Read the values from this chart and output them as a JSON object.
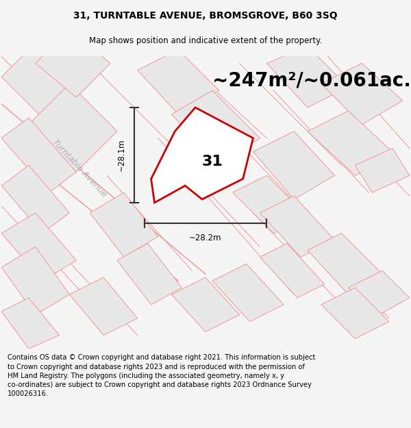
{
  "title": "31, TURNTABLE AVENUE, BROMSGROVE, B60 3SQ",
  "subtitle": "Map shows position and indicative extent of the property.",
  "area_text": "~247m²/~0.061ac.",
  "property_label": "31",
  "dim_horizontal": "~28.2m",
  "dim_vertical": "~28.1m",
  "street_label": "Turntable Avenue",
  "footer_line1": "Contains OS data © Crown copyright and database right 2021. This information is subject",
  "footer_line2": "to Crown copyright and database rights 2023 and is reproduced with the permission of",
  "footer_line3": "HM Land Registry. The polygons (including the associated geometry, namely x, y",
  "footer_line4": "co-ordinates) are subject to Crown copyright and database rights 2023 Ordnance Survey",
  "footer_line5": "100026316.",
  "bg_color": "#f5f5f5",
  "map_bg": "#ffffff",
  "building_fill": "#e8e8e8",
  "building_edge": "#f0a0a0",
  "road_color": "#f0a0a0",
  "plot_fill": "#ffffff",
  "plot_edge": "#cc0000",
  "street_label_color": "#b0b0b0",
  "dim_color": "#333333",
  "title_fontsize": 10,
  "subtitle_fontsize": 8.5,
  "area_fontsize": 20,
  "label_fontsize": 16,
  "dim_fontsize": 8.5,
  "street_fontsize": 9,
  "footer_fontsize": 7.2
}
